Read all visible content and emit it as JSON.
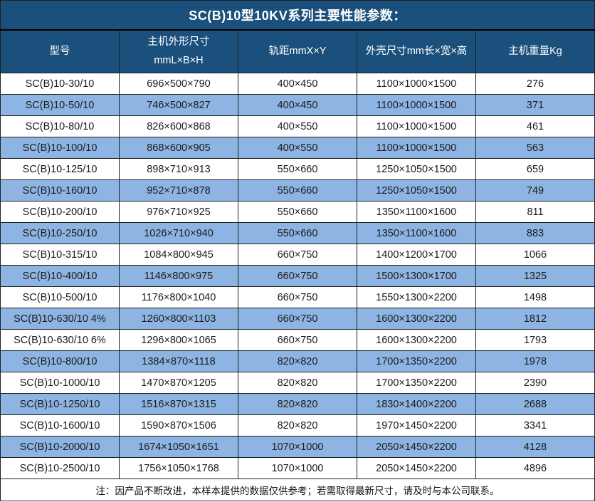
{
  "title": "SC(B)10型10KV系列主要性能参数：",
  "table": {
    "columns": [
      "型号",
      "主机外形尺寸\nmmL×B×H",
      "轨距mmX×Y",
      "外壳尺寸mm长×宽×高",
      "主机重量Kg"
    ],
    "rows": [
      [
        "SC(B)10-30/10",
        "696×500×790",
        "400×450",
        "1100×1000×1500",
        "276"
      ],
      [
        "SC(B)10-50/10",
        "746×500×827",
        "400×450",
        "1100×1000×1500",
        "371"
      ],
      [
        "SC(B)10-80/10",
        "826×600×868",
        "400×550",
        "1100×1000×1500",
        "461"
      ],
      [
        "SC(B)10-100/10",
        "868×600×905",
        "400×550",
        "1100×1000×1500",
        "563"
      ],
      [
        "SC(B)10-125/10",
        "898×710×913",
        "550×660",
        "1250×1050×1500",
        "659"
      ],
      [
        "SC(B)10-160/10",
        "952×710×878",
        "550×660",
        "1250×1050×1500",
        "749"
      ],
      [
        "SC(B)10-200/10",
        "976×710×925",
        "550×660",
        "1350×1100×1600",
        "811"
      ],
      [
        "SC(B)10-250/10",
        "1026×710×940",
        "550×660",
        "1350×1100×1600",
        "883"
      ],
      [
        "SC(B)10-315/10",
        "1084×800×945",
        "660×750",
        "1400×1200×1700",
        "1066"
      ],
      [
        "SC(B)10-400/10",
        "1146×800×975",
        "660×750",
        "1500×1300×1700",
        "1325"
      ],
      [
        "SC(B)10-500/10",
        "1176×800×1040",
        "660×750",
        "1550×1300×2200",
        "1498"
      ],
      [
        "SC(B)10-630/10 4%",
        "1260×800×1103",
        "660×750",
        "1600×1300×2200",
        "1812"
      ],
      [
        "SC(B)10-630/10 6%",
        "1296×800×1065",
        "660×750",
        "1600×1300×2200",
        "1793"
      ],
      [
        "SC(B)10-800/10",
        "1384×870×1118",
        "820×820",
        "1700×1350×2200",
        "1978"
      ],
      [
        "SC(B)10-1000/10",
        "1470×870×1205",
        "820×820",
        "1700×1350×2200",
        "2390"
      ],
      [
        "SC(B)10-1250/10",
        "1516×870×1315",
        "820×820",
        "1830×1400×2200",
        "2688"
      ],
      [
        "SC(B)10-1600/10",
        "1590×870×1506",
        "820×820",
        "1970×1450×2200",
        "3341"
      ],
      [
        "SC(B)10-2000/10",
        "1674×1050×1651",
        "1070×1000",
        "2050×1450×2200",
        "4128"
      ],
      [
        "SC(B)10-2500/10",
        "1756×1050×1768",
        "1070×1000",
        "2050×1450×2200",
        "4896"
      ]
    ]
  },
  "note": "注：因产品不断改进，本样本提供的数据仅供参考；若需取得最新尺寸，请及时与本公司联系。",
  "colors": {
    "header_bg": "#1b507d",
    "alt_row_bg": "#8db4e2",
    "border": "#1f1f1f",
    "header_text": "#ffffff",
    "body_text": "#1c1c1c"
  }
}
